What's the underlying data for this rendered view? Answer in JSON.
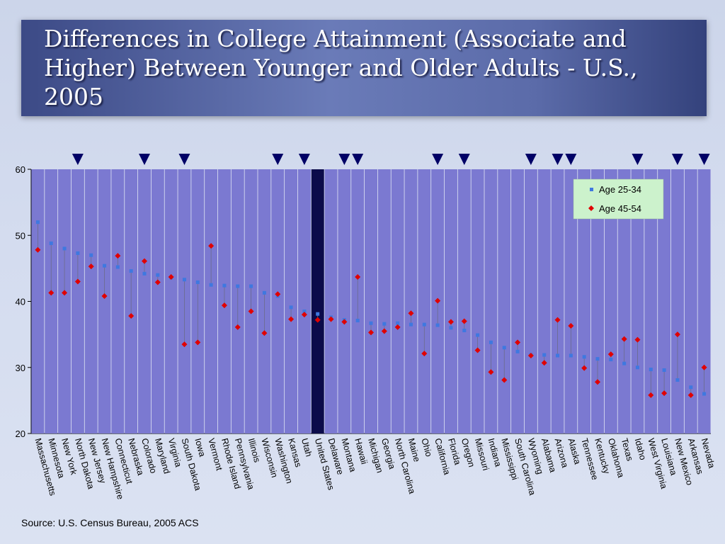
{
  "title": "Differences in College Attainment (Associate and Higher) Between Younger and Older Adults - U.S., 2005",
  "source": "Source:  U.S. Census Bureau, 2005 ACS",
  "colors": {
    "bar": "#7b79d1",
    "bar_highlight": "#0b0b4a",
    "series_younger": "#3f78e0",
    "series_older": "#e00000",
    "marker": "#000066",
    "legend_bg": "#ccf2cc"
  },
  "chart_data": {
    "type": "scatter",
    "y_range": [
      20,
      60
    ],
    "y_ticks": [
      "20",
      "30",
      "40",
      "50",
      "60"
    ],
    "legend_position": "top-right",
    "highlight_category": "United States",
    "categories": [
      "Massachusetts",
      "Minnesota",
      "New York",
      "North Dakota",
      "New Jersey",
      "New Hampshire",
      "Connecticut",
      "Nebraska",
      "Colorado",
      "Maryland",
      "Virginia",
      "South Dakota",
      "Iowa",
      "Vermont",
      "Rhode Island",
      "Pennsylvania",
      "Illinois",
      "Wisconsin",
      "Washington",
      "Kansas",
      "Utah",
      "United States",
      "Delaware",
      "Montana",
      "Hawaii",
      "Michigan",
      "Georgia",
      "North Carolina",
      "Maine",
      "Ohio",
      "California",
      "Florida",
      "Oregon",
      "Missouri",
      "Indiana",
      "Mississippi",
      "South Carolina",
      "Wyoming",
      "Alabama",
      "Arizona",
      "Alaska",
      "Tennessee",
      "Kentucky",
      "Oklahoma",
      "Texas",
      "Idaho",
      "West Virginia",
      "Louisiana",
      "New Mexico",
      "Arkansas",
      "Nevada"
    ],
    "series": [
      {
        "name": "Age 25-34",
        "values": [
          52.0,
          48.8,
          48.0,
          47.3,
          47.0,
          45.4,
          45.2,
          44.6,
          44.2,
          44.0,
          43.6,
          43.3,
          42.9,
          42.5,
          42.4,
          42.3,
          42.3,
          41.3,
          40.8,
          39.1,
          38.5,
          38.1,
          37.6,
          37.2,
          37.1,
          36.7,
          36.6,
          36.7,
          36.5,
          36.5,
          36.4,
          36.0,
          35.6,
          34.9,
          33.8,
          33.0,
          32.4,
          31.9,
          31.9,
          31.8,
          31.8,
          31.6,
          31.3,
          31.2,
          30.6,
          30.0,
          29.7,
          29.6,
          28.1,
          27.0,
          26.0
        ]
      },
      {
        "name": "Age 45-54",
        "values": [
          47.8,
          41.3,
          41.3,
          43.0,
          45.3,
          40.8,
          46.9,
          37.8,
          46.1,
          42.9,
          43.7,
          33.5,
          33.8,
          48.4,
          39.4,
          36.1,
          38.5,
          35.2,
          41.1,
          37.3,
          38.0,
          37.2,
          37.3,
          36.9,
          43.7,
          35.3,
          35.5,
          36.1,
          38.2,
          32.1,
          40.1,
          36.9,
          37.0,
          32.6,
          29.3,
          28.1,
          33.8,
          31.8,
          30.7,
          37.2,
          36.3,
          29.9,
          27.8,
          32.0,
          34.3,
          34.2,
          25.8,
          26.1,
          35.0,
          25.8,
          30.0
        ]
      }
    ],
    "marked_categories": [
      "North Dakota",
      "Colorado",
      "South Dakota",
      "Washington",
      "Utah",
      "Montana",
      "Hawaii",
      "California",
      "Oregon",
      "Wyoming",
      "Arizona",
      "Alaska",
      "Idaho",
      "New Mexico",
      "Nevada"
    ]
  }
}
